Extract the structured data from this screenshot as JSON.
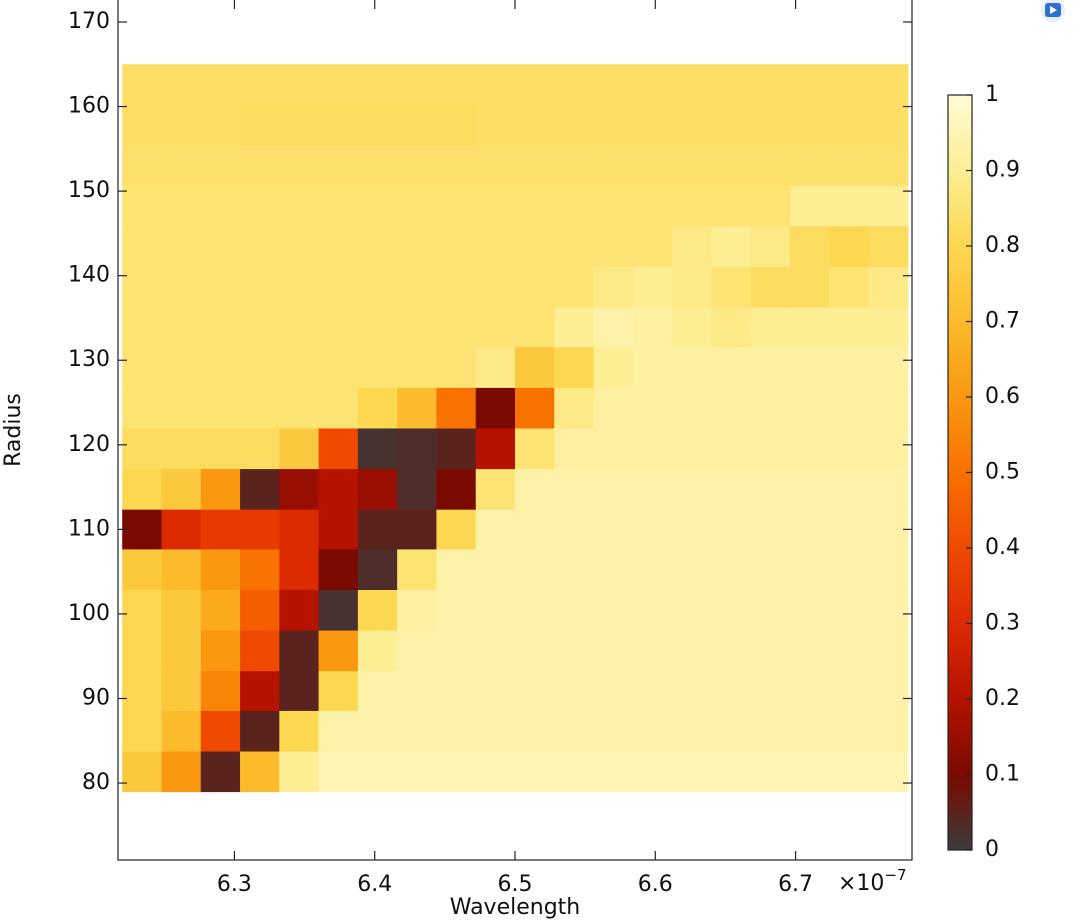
{
  "chart_data": {
    "type": "heatmap",
    "x_label": "Wavelength",
    "y_label": "Radius",
    "x_multiplier": "×10",
    "x_exponent": "−7",
    "xlim": [
      6.217,
      6.783
    ],
    "ylim": [
      70.9,
      172.6
    ],
    "xticks": [
      6.3,
      6.4,
      6.5,
      6.6,
      6.7
    ],
    "yticks": [
      80,
      90,
      100,
      110,
      120,
      130,
      140,
      150,
      160,
      170
    ],
    "xbins": [
      6.22,
      6.248,
      6.276,
      6.304,
      6.332,
      6.36,
      6.388,
      6.416,
      6.444,
      6.472,
      6.5,
      6.528,
      6.556,
      6.584,
      6.612,
      6.64,
      6.668,
      6.696,
      6.724,
      6.752,
      6.78
    ],
    "ybins": [
      79,
      83.8,
      88.6,
      93.3,
      98.1,
      102.9,
      107.7,
      112.4,
      117.2,
      122,
      126.8,
      131.6,
      136.3,
      141.1,
      145.9,
      150.7,
      155.4,
      160.2,
      165
    ],
    "zlim": [
      0,
      1
    ],
    "colorbar_ticks": [
      0,
      0.1,
      0.2,
      0.3,
      0.4,
      0.5,
      0.6,
      0.7,
      0.8,
      0.9,
      1
    ],
    "colorscale": [
      "#3c3c3c",
      "#7a0a00",
      "#b51200",
      "#dc2a00",
      "#f04a00",
      "#f87200",
      "#fa9810",
      "#fbbb2c",
      "#fcd750",
      "#fdee94",
      "#fffbd6"
    ],
    "z": [
      [
        0.75,
        0.6,
        0.05,
        0.7,
        0.9,
        0.95,
        0.95,
        0.95,
        0.95,
        0.95,
        0.95,
        0.95,
        0.95,
        0.95,
        0.95,
        0.95,
        0.95,
        0.95,
        0.95,
        0.95
      ],
      [
        0.8,
        0.7,
        0.4,
        0.05,
        0.8,
        0.93,
        0.93,
        0.93,
        0.93,
        0.93,
        0.93,
        0.93,
        0.93,
        0.93,
        0.93,
        0.93,
        0.93,
        0.93,
        0.93,
        0.93
      ],
      [
        0.8,
        0.75,
        0.55,
        0.2,
        0.05,
        0.8,
        0.93,
        0.93,
        0.93,
        0.93,
        0.93,
        0.93,
        0.93,
        0.93,
        0.93,
        0.93,
        0.93,
        0.93,
        0.93,
        0.93
      ],
      [
        0.8,
        0.75,
        0.6,
        0.4,
        0.05,
        0.6,
        0.9,
        0.93,
        0.93,
        0.93,
        0.93,
        0.93,
        0.93,
        0.93,
        0.93,
        0.93,
        0.93,
        0.93,
        0.93,
        0.93
      ],
      [
        0.8,
        0.75,
        0.65,
        0.45,
        0.2,
        0.02,
        0.8,
        0.92,
        0.93,
        0.93,
        0.93,
        0.93,
        0.93,
        0.93,
        0.93,
        0.93,
        0.93,
        0.93,
        0.93,
        0.93
      ],
      [
        0.75,
        0.7,
        0.6,
        0.5,
        0.3,
        0.1,
        0.03,
        0.85,
        0.93,
        0.93,
        0.93,
        0.93,
        0.93,
        0.93,
        0.93,
        0.93,
        0.93,
        0.93,
        0.93,
        0.93
      ],
      [
        0.1,
        0.3,
        0.35,
        0.35,
        0.3,
        0.2,
        0.05,
        0.05,
        0.8,
        0.93,
        0.93,
        0.93,
        0.93,
        0.93,
        0.93,
        0.93,
        0.93,
        0.93,
        0.93,
        0.93
      ],
      [
        0.8,
        0.75,
        0.6,
        0.05,
        0.15,
        0.2,
        0.15,
        0.03,
        0.1,
        0.85,
        0.93,
        0.93,
        0.93,
        0.93,
        0.93,
        0.93,
        0.93,
        0.93,
        0.93,
        0.93
      ],
      [
        0.82,
        0.82,
        0.82,
        0.82,
        0.75,
        0.4,
        0.02,
        0.03,
        0.05,
        0.2,
        0.85,
        0.92,
        0.92,
        0.92,
        0.92,
        0.92,
        0.92,
        0.92,
        0.92,
        0.92
      ],
      [
        0.85,
        0.85,
        0.85,
        0.85,
        0.85,
        0.85,
        0.8,
        0.7,
        0.5,
        0.1,
        0.5,
        0.88,
        0.92,
        0.92,
        0.92,
        0.92,
        0.92,
        0.92,
        0.92,
        0.92
      ],
      [
        0.85,
        0.85,
        0.85,
        0.85,
        0.85,
        0.85,
        0.85,
        0.85,
        0.85,
        0.88,
        0.75,
        0.8,
        0.9,
        0.92,
        0.92,
        0.92,
        0.92,
        0.92,
        0.92,
        0.92
      ],
      [
        0.85,
        0.85,
        0.85,
        0.85,
        0.85,
        0.85,
        0.85,
        0.85,
        0.85,
        0.85,
        0.85,
        0.9,
        0.93,
        0.92,
        0.9,
        0.88,
        0.9,
        0.9,
        0.9,
        0.9
      ],
      [
        0.85,
        0.85,
        0.85,
        0.85,
        0.85,
        0.85,
        0.85,
        0.85,
        0.85,
        0.85,
        0.85,
        0.85,
        0.88,
        0.9,
        0.88,
        0.85,
        0.82,
        0.82,
        0.85,
        0.88
      ],
      [
        0.85,
        0.85,
        0.85,
        0.85,
        0.85,
        0.85,
        0.85,
        0.85,
        0.85,
        0.85,
        0.85,
        0.85,
        0.85,
        0.85,
        0.88,
        0.9,
        0.88,
        0.82,
        0.8,
        0.82
      ],
      [
        0.85,
        0.85,
        0.85,
        0.85,
        0.85,
        0.85,
        0.85,
        0.85,
        0.85,
        0.85,
        0.85,
        0.85,
        0.85,
        0.85,
        0.85,
        0.85,
        0.85,
        0.9,
        0.9,
        0.9
      ],
      [
        0.84,
        0.84,
        0.84,
        0.84,
        0.84,
        0.84,
        0.84,
        0.84,
        0.84,
        0.84,
        0.84,
        0.84,
        0.84,
        0.84,
        0.84,
        0.84,
        0.84,
        0.84,
        0.84,
        0.84
      ],
      [
        0.83,
        0.83,
        0.83,
        0.82,
        0.82,
        0.82,
        0.82,
        0.82,
        0.82,
        0.83,
        0.83,
        0.83,
        0.83,
        0.83,
        0.83,
        0.83,
        0.83,
        0.83,
        0.83,
        0.83
      ],
      [
        0.83,
        0.83,
        0.83,
        0.83,
        0.83,
        0.83,
        0.83,
        0.83,
        0.83,
        0.83,
        0.83,
        0.83,
        0.83,
        0.83,
        0.83,
        0.83,
        0.83,
        0.83,
        0.83,
        0.83
      ]
    ]
  }
}
